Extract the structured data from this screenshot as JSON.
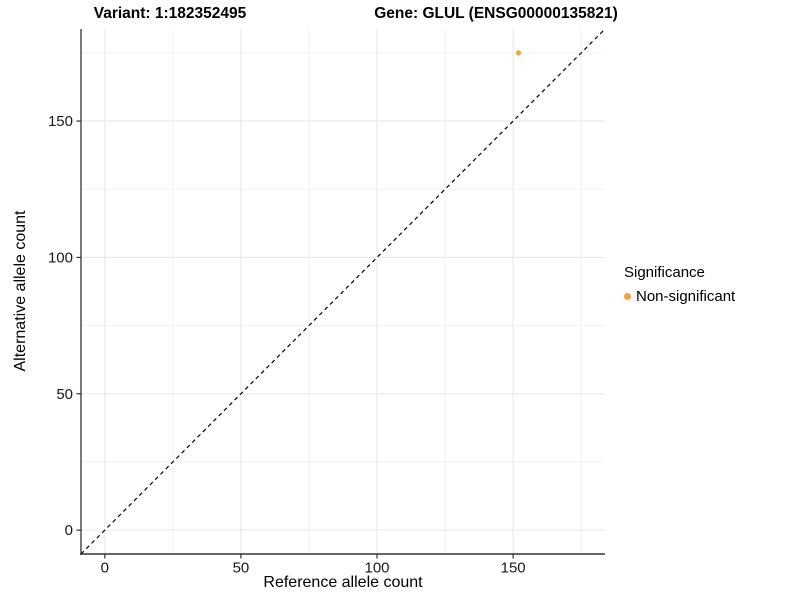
{
  "titles": {
    "variant": "Variant: 1:182352495",
    "gene": "Gene: GLUL (ENSG00000135821)"
  },
  "chart_data": {
    "type": "scatter",
    "title": "Variant: 1:182352495  /  Gene: GLUL (ENSG00000135821)",
    "xlabel": "Reference allele count",
    "ylabel": "Alternative allele count",
    "xlim": [
      -8.75,
      183.75
    ],
    "ylim": [
      -8.75,
      183.75
    ],
    "x_ticks": [
      0,
      50,
      100,
      150
    ],
    "y_ticks": [
      0,
      50,
      100,
      150
    ],
    "x_minor_ticks": [
      25,
      75,
      125,
      175
    ],
    "y_minor_ticks": [
      25,
      75,
      125,
      175
    ],
    "grid": true,
    "points": [
      {
        "x": 152,
        "y": 175,
        "series": "Non-significant"
      }
    ],
    "identity_line": {
      "slope": 1,
      "intercept": 0,
      "style": "dashed"
    },
    "legend": {
      "title": "Significance",
      "position": "right",
      "entries": [
        {
          "label": "Non-significant",
          "color": "#F8A238"
        }
      ]
    }
  },
  "colors": {
    "point": "#F8A238",
    "grid_major": "#E6E6E6",
    "grid_minor": "#F2F2F2",
    "axis": "#333333",
    "tick_text": "#1A1A1A",
    "identity_line": "#000000",
    "background": "#FFFFFF"
  }
}
